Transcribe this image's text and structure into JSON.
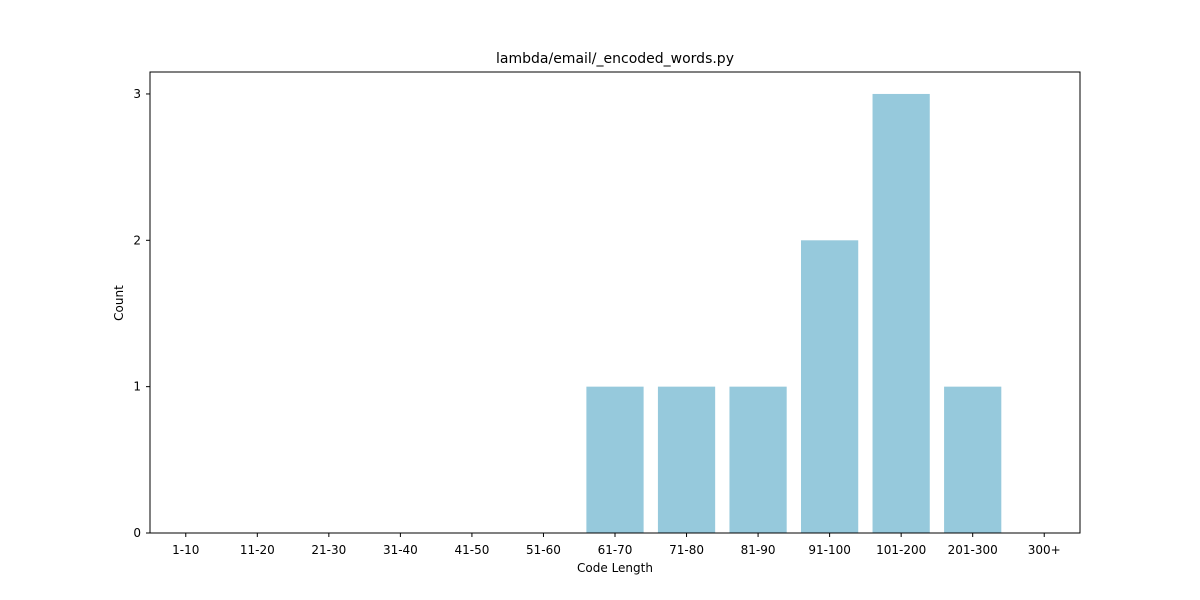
{
  "chart_data": {
    "type": "bar",
    "title": "lambda/email/_encoded_words.py",
    "xlabel": "Code Length",
    "ylabel": "Count",
    "categories": [
      "1-10",
      "11-20",
      "21-30",
      "31-40",
      "41-50",
      "51-60",
      "61-70",
      "71-80",
      "81-90",
      "91-100",
      "101-200",
      "201-300",
      "300+"
    ],
    "values": [
      0,
      0,
      0,
      0,
      0,
      0,
      1,
      1,
      1,
      2,
      3,
      1,
      0
    ],
    "ylim": [
      0,
      3.15
    ],
    "yticks": [
      "0",
      "1",
      "2",
      "3"
    ],
    "bar_color": "#96c9dc",
    "grid": false,
    "legend": "none"
  }
}
